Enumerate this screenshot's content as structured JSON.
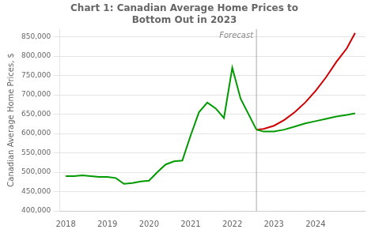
{
  "chart_data": {
    "type": "line",
    "title": "Chart 1: Canadian Average Home Prices to\nBottom Out in 2023",
    "y_label": "Canadian Average Home Prices, $",
    "series": [
      {
        "color": "#009900",
        "x": [
          2018.0,
          2018.2,
          2018.4,
          2018.6,
          2018.8,
          2019.0,
          2019.2,
          2019.4,
          2019.6,
          2019.8,
          2020.0,
          2020.2,
          2020.4,
          2020.6,
          2020.8,
          2021.0,
          2021.2,
          2021.4,
          2021.6,
          2021.8,
          2022.0,
          2022.2,
          2022.58
        ],
        "values": [
          490000,
          490000,
          492000,
          490000,
          488000,
          488000,
          485000,
          470000,
          472000,
          476000,
          478000,
          500000,
          520000,
          528000,
          530000,
          595000,
          655000,
          680000,
          665000,
          640000,
          770000,
          690000,
          610000
        ]
      },
      {
        "color": "#009900",
        "x": [
          2022.58,
          2022.75,
          2023.0,
          2023.25,
          2023.5,
          2023.75,
          2024.0,
          2024.25,
          2024.5,
          2024.75,
          2024.95
        ],
        "values": [
          610000,
          605000,
          605000,
          610000,
          618000,
          626000,
          632000,
          638000,
          644000,
          648000,
          652000
        ]
      },
      {
        "color": "#cc0000",
        "x": [
          2022.58,
          2022.75,
          2023.0,
          2023.25,
          2023.5,
          2023.75,
          2024.0,
          2024.25,
          2024.5,
          2024.75,
          2024.95
        ],
        "values": [
          610000,
          612000,
          620000,
          635000,
          655000,
          680000,
          710000,
          745000,
          785000,
          820000,
          860000
        ]
      }
    ],
    "vline": {
      "x": 2022.58,
      "color": "#aaaaaa",
      "label": "Forecast"
    },
    "xlim": [
      2017.85,
      2025.2
    ],
    "xticks": [
      2018,
      2019,
      2020,
      2021,
      2022,
      2023,
      2024
    ],
    "ylim": [
      400000,
      870000
    ],
    "yticks": [
      {
        "value": 400000,
        "label": "400,000"
      },
      {
        "value": 450000,
        "label": "450,000"
      },
      {
        "value": 500000,
        "label": "500,000"
      },
      {
        "value": 550000,
        "label": "550,000"
      },
      {
        "value": 600000,
        "label": "600,000"
      },
      {
        "value": 650000,
        "label": "650,000"
      },
      {
        "value": 700000,
        "label": "700,000"
      },
      {
        "value": 750000,
        "label": "750,000"
      },
      {
        "value": 800000,
        "label": "800,000"
      },
      {
        "value": 850000,
        "label": "850,000"
      }
    ],
    "grid": "y"
  }
}
